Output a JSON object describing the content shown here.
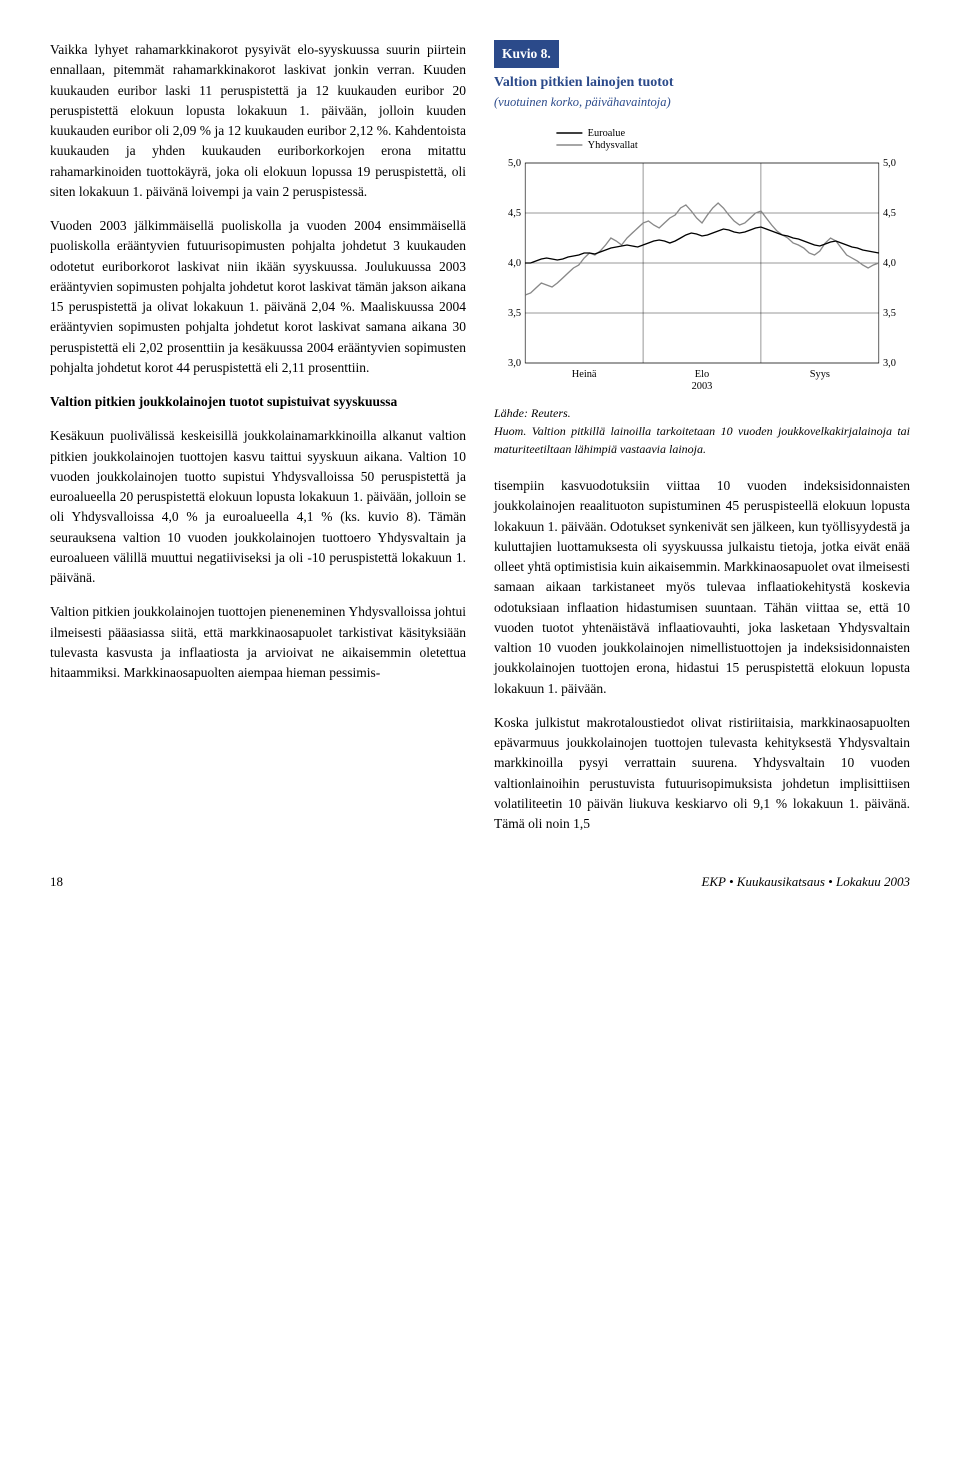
{
  "left": {
    "p1": "Vaikka lyhyet rahamarkkinakorot pysyivät elo-syyskuussa suurin piirtein ennallaan, pitemmät rahamarkkinakorot laskivat jonkin verran. Kuuden kuukauden euribor laski 11 peruspistettä ja 12 kuukauden euribor 20 peruspistettä elokuun lopusta lokakuun 1. päivään, jolloin kuuden kuukauden euribor oli 2,09 % ja 12 kuukauden euribor 2,12 %. Kahdentoista kuukauden ja yhden kuukauden euriborkorkojen erona mitattu rahamarkinoiden tuottokäyrä, joka oli elokuun lopussa 19 peruspistettä, oli siten lokakuun 1. päivänä loivempi ja vain 2 peruspistessä.",
    "p2": "Vuoden 2003 jälkimmäisellä puoliskolla ja vuoden 2004 ensimmäisellä puoliskolla erääntyvien futuurisopimusten pohjalta johdetut 3 kuukauden odotetut euriborkorot laskivat niin ikään syyskuussa. Joulukuussa 2003 erääntyvien sopimusten pohjalta johdetut korot laskivat tämän jakson aikana 15 peruspistettä ja olivat lokakuun 1. päivänä 2,04 %. Maaliskuussa 2004 erääntyvien sopimusten pohjalta johdetut korot laskivat samana aikana 30 peruspistettä eli 2,02 prosenttiin ja kesäkuussa 2004 erääntyvien sopimusten pohjalta johdetut korot 44 peruspistettä eli 2,11 prosenttiin.",
    "h1": "Valtion pitkien joukkolainojen tuotot supistuivat syyskuussa",
    "p3": "Kesäkuun puolivälissä keskeisillä joukkolainamarkkinoilla alkanut valtion pitkien joukkolainojen tuottojen kasvu taittui syyskuun aikana. Valtion 10 vuoden joukkolainojen tuotto supistui Yhdysvalloissa 50 peruspistettä ja euroalueella 20 peruspistettä elokuun lopusta lokakuun 1. päivään, jolloin se oli Yhdysvalloissa 4,0 % ja euroalueella 4,1 % (ks. kuvio 8). Tämän seurauksena valtion 10 vuoden joukkolainojen tuottoero Yhdysvaltain ja euroalueen välillä muuttui negatiiviseksi ja oli -10 peruspistettä lokakuun 1. päivänä.",
    "p4": "Valtion pitkien joukkolainojen tuottojen pieneneminen Yhdysvalloissa johtui ilmeisesti pääasiassa siitä, että markkinaosapuolet tarkistivat käsityksiään tulevasta kasvusta ja inflaatiosta ja arvioivat ne aikaisemmin oletettua hitaammiksi. Markkinaosapuolten aiempaa hieman pessimis-"
  },
  "right": {
    "p1": "tisempiin kasvuodotuksiin viittaa 10 vuoden indeksisidonnaisten joukkolainojen reaalituoton supistuminen 45 peruspisteellä elokuun lopusta lokakuun 1. päivään. Odotukset synkenivät sen jälkeen, kun työllisyydestä ja kuluttajien luottamuksesta oli syyskuussa julkaistu tietoja, jotka eivät enää olleet yhtä optimistisia kuin aikaisemmin. Markkinaosapuolet ovat ilmeisesti samaan aikaan tarkistaneet myös tulevaa inflaatiokehitystä koskevia odotuksiaan inflaation hidastumisen suuntaan. Tähän viittaa se, että 10 vuoden tuotot yhtenäistävä inflaatiovauhti, joka lasketaan Yhdysvaltain valtion 10 vuoden joukkolainojen nimellistuottojen ja indeksisidonnaisten joukkolainojen tuottojen erona, hidastui 15 peruspistettä elokuun lopusta lokakuun 1. päivään.",
    "p2": "Koska julkistut makrotaloustiedot olivat ristiriitaisia, markkinaosapuolten epävarmuus joukkolainojen tuottojen tulevasta kehityksestä Yhdysvaltain markkinoilla pysyi verrattain suurena. Yhdysvaltain 10 vuoden valtionlainoihin perustuvista futuurisopimuksista johdetun implisittiisen volatiliteetin 10 päivän liukuva keskiarvo oli 9,1 % lokakuun 1. päivänä. Tämä oli noin 1,5"
  },
  "figure": {
    "header": "Kuvio 8.",
    "title": "Valtion pitkien lainojen tuotot",
    "subtitle": "(vuotuinen korko, päivähavaintoja)",
    "legend": {
      "s1": "Euroalue",
      "s2": "Yhdysvallat"
    },
    "xlabels": {
      "a": "Heinä",
      "b": "Elo",
      "c": "Syys",
      "year": "2003"
    },
    "source": "Lähde: Reuters.",
    "note": "Huom. Valtion pitkillä lainoilla tarkoitetaan 10 vuoden joukkovelkakirjalainoja tai maturiteetiltaan lähimpiä vastaavia lainoja.",
    "yticks": [
      "5,0",
      "4,5",
      "4,0",
      "3,5",
      "3,0"
    ],
    "ylim": [
      3.0,
      5.0
    ],
    "series1_color": "#000000",
    "series2_color": "#888888",
    "grid_color": "#000000",
    "background": "#ffffff",
    "series_euro": [
      4.0,
      4.0,
      4.02,
      4.04,
      4.05,
      4.04,
      4.03,
      4.04,
      4.06,
      4.07,
      4.08,
      4.1,
      4.1,
      4.09,
      4.11,
      4.13,
      4.15,
      4.16,
      4.17,
      4.18,
      4.17,
      4.16,
      4.18,
      4.2,
      4.22,
      4.23,
      4.22,
      4.2,
      4.22,
      4.25,
      4.28,
      4.3,
      4.29,
      4.27,
      4.28,
      4.3,
      4.32,
      4.34,
      4.33,
      4.31,
      4.3,
      4.31,
      4.33,
      4.35,
      4.36,
      4.34,
      4.32,
      4.3,
      4.28,
      4.27,
      4.25,
      4.24,
      4.22,
      4.2,
      4.18,
      4.17,
      4.19,
      4.21,
      4.22,
      4.2,
      4.18,
      4.16,
      4.15,
      4.13,
      4.12,
      4.11,
      4.1
    ],
    "series_us": [
      3.68,
      3.7,
      3.75,
      3.8,
      3.78,
      3.76,
      3.8,
      3.85,
      3.9,
      3.95,
      3.98,
      4.05,
      4.1,
      4.08,
      4.12,
      4.18,
      4.25,
      4.22,
      4.18,
      4.25,
      4.3,
      4.35,
      4.4,
      4.42,
      4.38,
      4.35,
      4.4,
      4.45,
      4.48,
      4.55,
      4.58,
      4.52,
      4.45,
      4.4,
      4.48,
      4.55,
      4.6,
      4.55,
      4.48,
      4.42,
      4.38,
      4.4,
      4.45,
      4.5,
      4.52,
      4.45,
      4.38,
      4.32,
      4.28,
      4.25,
      4.2,
      4.18,
      4.15,
      4.1,
      4.08,
      4.12,
      4.2,
      4.25,
      4.22,
      4.15,
      4.08,
      4.05,
      4.02,
      3.98,
      3.95,
      3.98,
      4.0
    ]
  },
  "footer": {
    "page": "18",
    "pub": "EKP • Kuukausikatsaus • Lokakuu 2003"
  }
}
